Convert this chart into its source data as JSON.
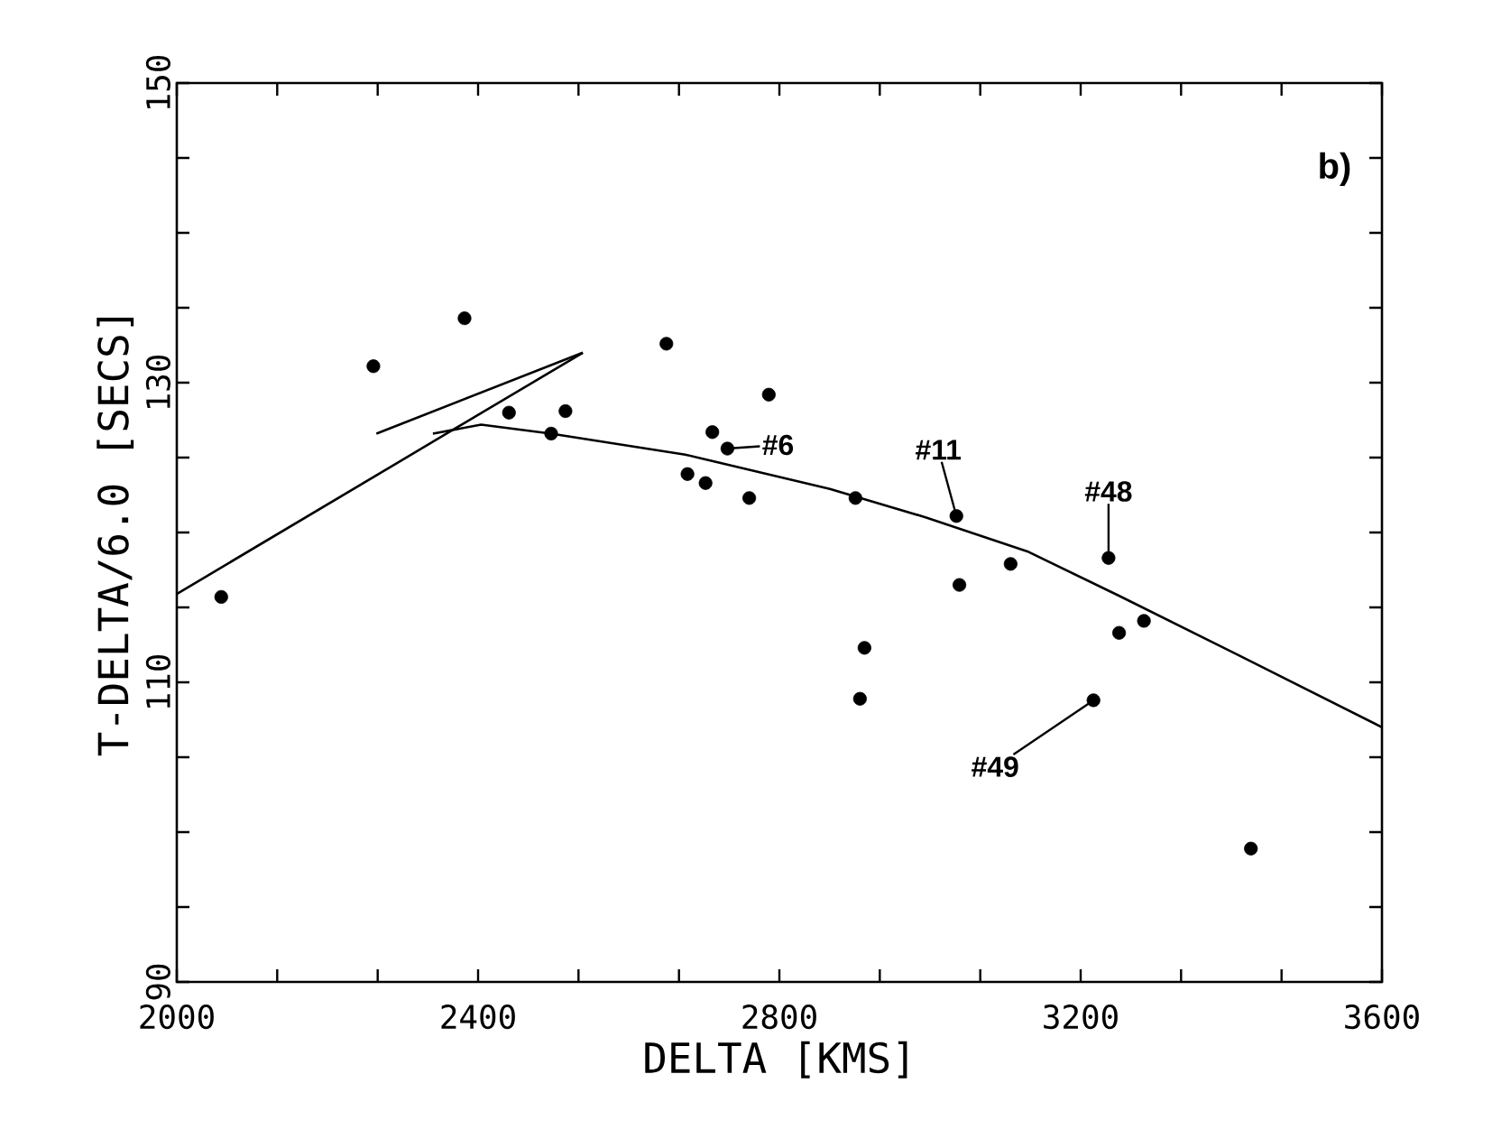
{
  "chart_data": {
    "type": "scatter",
    "xlabel": "DELTA [KMS]",
    "ylabel": "T-DELTA/6.0 [SECS]",
    "xlim": [
      2000,
      3600
    ],
    "ylim": [
      90,
      150
    ],
    "xticks": [
      2000,
      {
        "value": 2133.3,
        "label": null
      },
      {
        "value": 2266.7,
        "label": null
      },
      2400,
      {
        "value": 2533.3,
        "label": null
      },
      {
        "value": 2666.7,
        "label": null
      },
      2800,
      {
        "value": 2933.3,
        "label": null
      },
      {
        "value": 3066.7,
        "label": null
      },
      3200,
      {
        "value": 3333.3,
        "label": null
      },
      {
        "value": 3466.7,
        "label": null
      },
      3600
    ],
    "yticks": [
      90,
      {
        "value": 95,
        "label": null
      },
      {
        "value": 100,
        "label": null
      },
      {
        "value": 105,
        "label": null
      },
      110,
      {
        "value": 115,
        "label": null
      },
      {
        "value": 120,
        "label": null
      },
      {
        "value": 125,
        "label": null
      },
      130,
      {
        "value": 135,
        "label": null
      },
      {
        "value": 140,
        "label": null
      },
      {
        "value": 145,
        "label": null
      },
      150
    ],
    "series": [
      {
        "marker": "circle",
        "color": "#000000",
        "x": [
          2059,
          2261,
          2382,
          2441,
          2497,
          2516,
          2650,
          2786,
          2711,
          2731,
          2678,
          2702,
          2760,
          2901,
          3035,
          3107,
          3039,
          3237,
          3284,
          3251,
          2913,
          2907,
          3217,
          3426
        ],
        "values": [
          115.7,
          131.1,
          134.3,
          128.0,
          126.6,
          128.1,
          132.6,
          129.2,
          126.7,
          125.6,
          123.9,
          123.3,
          122.3,
          122.3,
          121.1,
          117.9,
          116.5,
          118.3,
          114.1,
          113.3,
          112.3,
          108.9,
          108.8,
          98.9
        ]
      },
      {
        "type": "line",
        "marker": "none",
        "color": "#000000",
        "x": [
          2000,
          2539
        ],
        "values": [
          115.9,
          132.0
        ]
      },
      {
        "type": "line",
        "marker": "none",
        "color": "#000000",
        "x": [
          2265,
          2539
        ],
        "values": [
          126.6,
          132.0
        ]
      },
      {
        "type": "line",
        "marker": "none",
        "color": "#000000",
        "x": [
          2340,
          2404,
          2497,
          2675,
          2867,
          2995,
          3131,
          3250,
          3410,
          3600
        ],
        "values": [
          126.6,
          127.2,
          126.6,
          125.2,
          122.9,
          121.0,
          118.7,
          115.8,
          111.8,
          107.0
        ]
      }
    ],
    "annotations": [
      "b)",
      {
        "text": "#6",
        "x": 2731,
        "y": 125.6
      },
      {
        "text": "#11",
        "x": 3035,
        "y": 121.1
      },
      {
        "text": "#48",
        "x": 3237,
        "y": 118.3
      },
      {
        "text": "#49",
        "x": 3217,
        "y": 108.8
      }
    ]
  }
}
